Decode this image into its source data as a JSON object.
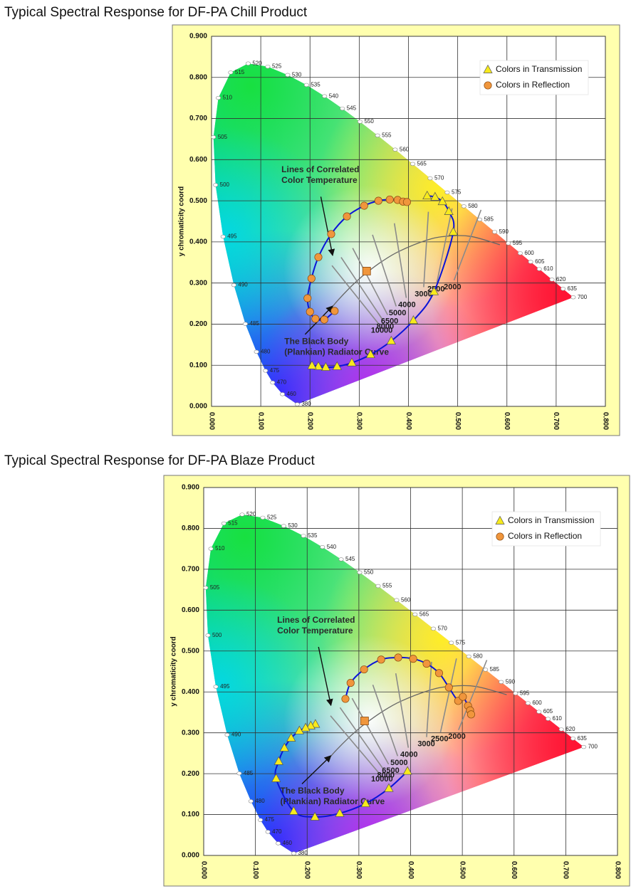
{
  "chart_data": [
    {
      "type": "scatter",
      "title": "Typical Spectral Response for DF-PA Chill Product",
      "ylabel": "y chromaticity coord",
      "xlim": [
        0,
        0.8
      ],
      "ylim": [
        0,
        0.9
      ],
      "xticks": [
        {
          "value": 0,
          "label": "0.000"
        },
        {
          "value": 0.1,
          "label": "0.100"
        },
        {
          "value": 0.2,
          "label": "0.200"
        },
        {
          "value": 0.3,
          "label": "0.300"
        },
        {
          "value": 0.4,
          "label": "0.400"
        },
        {
          "value": 0.5,
          "label": "0.500"
        },
        {
          "value": 0.6,
          "label": "0.600"
        },
        {
          "value": 0.7,
          "label": "0.700"
        },
        {
          "value": 0.8,
          "label": "0.800"
        }
      ],
      "yticks": [
        {
          "value": 0,
          "label": "0.000"
        },
        {
          "value": 0.1,
          "label": "0.100"
        },
        {
          "value": 0.2,
          "label": "0.200"
        },
        {
          "value": 0.3,
          "label": "0.300"
        },
        {
          "value": 0.4,
          "label": "0.400"
        },
        {
          "value": 0.5,
          "label": "0.500"
        },
        {
          "value": 0.6,
          "label": "0.600"
        },
        {
          "value": 0.7,
          "label": "0.700"
        },
        {
          "value": 0.8,
          "label": "0.800"
        },
        {
          "value": 0.9,
          "label": "0.900"
        }
      ],
      "grid": true,
      "legend": "upper right",
      "curve_color": "#0a14d8",
      "series": [
        {
          "name": "Colors in Transmission",
          "marker": "triangle",
          "color": "#f7ea1c",
          "x": [
            0.438,
            0.454,
            0.469,
            0.482,
            0.491,
            0.452,
            0.41,
            0.365,
            0.323,
            0.285,
            0.255,
            0.232,
            0.217,
            0.204
          ],
          "values": [
            0.512,
            0.509,
            0.498,
            0.474,
            0.424,
            0.279,
            0.209,
            0.159,
            0.126,
            0.106,
            0.097,
            0.095,
            0.097,
            0.099
          ]
        },
        {
          "name": "Colors in Reflection",
          "marker": "circle",
          "color": "#f0963c",
          "x": [
            0.25,
            0.229,
            0.211,
            0.2,
            0.195,
            0.203,
            0.217,
            0.243,
            0.275,
            0.31,
            0.339,
            0.362,
            0.378,
            0.389,
            0.397
          ],
          "values": [
            0.232,
            0.211,
            0.213,
            0.23,
            0.263,
            0.311,
            0.363,
            0.419,
            0.462,
            0.488,
            0.5,
            0.503,
            0.502,
            0.498,
            0.497
          ]
        }
      ],
      "white_point": {
        "x": 0.315,
        "y": 0.329,
        "color": "#f0963c"
      },
      "spectral_locus": {
        "labels": [
          380,
          460,
          470,
          475,
          480,
          485,
          490,
          495,
          500,
          505,
          510,
          515,
          520,
          525,
          530,
          535,
          540,
          545,
          550,
          555,
          560,
          565,
          570,
          575,
          580,
          585,
          590,
          595,
          600,
          605,
          610,
          620,
          635,
          700
        ],
        "x": [
          0.1741,
          0.144,
          0.1241,
          0.1096,
          0.0913,
          0.0687,
          0.0454,
          0.0235,
          0.0082,
          0.0039,
          0.0139,
          0.0389,
          0.0743,
          0.1142,
          0.1547,
          0.1929,
          0.2296,
          0.2658,
          0.3016,
          0.3373,
          0.3731,
          0.4087,
          0.4441,
          0.4788,
          0.5125,
          0.5448,
          0.5752,
          0.6029,
          0.627,
          0.6482,
          0.6658,
          0.6915,
          0.714,
          0.7347
        ],
        "y": [
          0.005,
          0.0297,
          0.0578,
          0.0868,
          0.1327,
          0.2007,
          0.295,
          0.4127,
          0.5384,
          0.6548,
          0.7502,
          0.812,
          0.8338,
          0.8262,
          0.8059,
          0.7816,
          0.7543,
          0.7243,
          0.6923,
          0.6589,
          0.6245,
          0.5896,
          0.5547,
          0.5202,
          0.4866,
          0.4544,
          0.4242,
          0.3965,
          0.3725,
          0.3514,
          0.334,
          0.3083,
          0.2859,
          0.2653
        ]
      },
      "planckian_locus": {
        "x": [
          0.2399,
          0.2565,
          0.2807,
          0.2952,
          0.3135,
          0.3451,
          0.3805,
          0.4369,
          0.477,
          0.5267,
          0.5857
        ],
        "y": [
          0.2342,
          0.2577,
          0.2884,
          0.3048,
          0.3236,
          0.3516,
          0.3768,
          0.4041,
          0.4137,
          0.4133,
          0.3931
        ]
      },
      "cct": {
        "labels": [
          10000,
          8000,
          6500,
          5000,
          4000,
          3000,
          2500,
          2000
        ],
        "x": [
          0.2807,
          0.2952,
          0.3135,
          0.3451,
          0.3805,
          0.4369,
          0.477,
          0.5267
        ],
        "y": [
          0.2884,
          0.3048,
          0.3236,
          0.3516,
          0.3768,
          0.4041,
          0.4137,
          0.4133
        ]
      },
      "annotations": [
        {
          "lines": [
            "Lines of Correlated",
            "Color Temperature"
          ]
        },
        {
          "lines": [
            "The Black Body",
            "(Plankian) Radiator Curve"
          ]
        }
      ]
    },
    {
      "type": "scatter",
      "title": "Typical Spectral Response for DF-PA Blaze Product",
      "ylabel": "y chromaticity coord",
      "xlim": [
        0,
        0.8
      ],
      "ylim": [
        0,
        0.9
      ],
      "xticks": [
        {
          "value": 0,
          "label": "0.000"
        },
        {
          "value": 0.1,
          "label": "0.100"
        },
        {
          "value": 0.2,
          "label": "0.200"
        },
        {
          "value": 0.3,
          "label": "0.300"
        },
        {
          "value": 0.4,
          "label": "0.400"
        },
        {
          "value": 0.5,
          "label": "0.500"
        },
        {
          "value": 0.6,
          "label": "0.600"
        },
        {
          "value": 0.7,
          "label": "0.700"
        },
        {
          "value": 0.8,
          "label": "0.800"
        }
      ],
      "yticks": [
        {
          "value": 0,
          "label": "0.000"
        },
        {
          "value": 0.1,
          "label": "0.100"
        },
        {
          "value": 0.2,
          "label": "0.200"
        },
        {
          "value": 0.3,
          "label": "0.300"
        },
        {
          "value": 0.4,
          "label": "0.400"
        },
        {
          "value": 0.5,
          "label": "0.500"
        },
        {
          "value": 0.6,
          "label": "0.600"
        },
        {
          "value": 0.7,
          "label": "0.700"
        },
        {
          "value": 0.8,
          "label": "0.800"
        },
        {
          "value": 0.9,
          "label": "0.900"
        }
      ],
      "grid": true,
      "legend": "upper right",
      "curve_color": "#0a14d8",
      "series": [
        {
          "name": "Colors in Transmission",
          "marker": "triangle",
          "color": "#f7ea1c",
          "x": [
            0.216,
            0.207,
            0.197,
            0.185,
            0.169,
            0.156,
            0.145,
            0.14,
            0.174,
            0.215,
            0.263,
            0.313,
            0.358,
            0.394
          ],
          "values": [
            0.321,
            0.317,
            0.312,
            0.305,
            0.287,
            0.263,
            0.23,
            0.188,
            0.108,
            0.094,
            0.103,
            0.127,
            0.164,
            0.206
          ]
        },
        {
          "name": "Colors in Reflection",
          "marker": "circle",
          "color": "#f0963c",
          "x": [
            0.274,
            0.284,
            0.31,
            0.343,
            0.376,
            0.405,
            0.431,
            0.455,
            0.474,
            0.492,
            0.501,
            0.511,
            0.515,
            0.517
          ],
          "values": [
            0.383,
            0.422,
            0.455,
            0.479,
            0.484,
            0.481,
            0.469,
            0.446,
            0.411,
            0.378,
            0.388,
            0.366,
            0.355,
            0.345
          ]
        }
      ],
      "white_point": {
        "x": 0.311,
        "y": 0.329,
        "color": "#f0963c"
      },
      "spectral_locus": {
        "labels": [
          380,
          460,
          470,
          475,
          480,
          485,
          490,
          495,
          500,
          505,
          510,
          515,
          520,
          525,
          530,
          535,
          540,
          545,
          550,
          555,
          560,
          565,
          570,
          575,
          580,
          585,
          590,
          595,
          600,
          605,
          610,
          620,
          635,
          700
        ],
        "x": [
          0.1741,
          0.144,
          0.1241,
          0.1096,
          0.0913,
          0.0687,
          0.0454,
          0.0235,
          0.0082,
          0.0039,
          0.0139,
          0.0389,
          0.0743,
          0.1142,
          0.1547,
          0.1929,
          0.2296,
          0.2658,
          0.3016,
          0.3373,
          0.3731,
          0.4087,
          0.4441,
          0.4788,
          0.5125,
          0.5448,
          0.5752,
          0.6029,
          0.627,
          0.6482,
          0.6658,
          0.6915,
          0.714,
          0.7347
        ],
        "y": [
          0.005,
          0.0297,
          0.0578,
          0.0868,
          0.1327,
          0.2007,
          0.295,
          0.4127,
          0.5384,
          0.6548,
          0.7502,
          0.812,
          0.8338,
          0.8262,
          0.8059,
          0.7816,
          0.7543,
          0.7243,
          0.6923,
          0.6589,
          0.6245,
          0.5896,
          0.5547,
          0.5202,
          0.4866,
          0.4544,
          0.4242,
          0.3965,
          0.3725,
          0.3514,
          0.334,
          0.3083,
          0.2859,
          0.2653
        ]
      },
      "planckian_locus": {
        "x": [
          0.2399,
          0.2565,
          0.2807,
          0.2952,
          0.3135,
          0.3451,
          0.3805,
          0.4369,
          0.477,
          0.5267,
          0.5857
        ],
        "y": [
          0.2342,
          0.2577,
          0.2884,
          0.3048,
          0.3236,
          0.3516,
          0.3768,
          0.4041,
          0.4137,
          0.4133,
          0.3931
        ]
      },
      "cct": {
        "labels": [
          10000,
          8000,
          6500,
          5000,
          4000,
          3000,
          2500,
          2000
        ],
        "x": [
          0.2807,
          0.2952,
          0.3135,
          0.3451,
          0.3805,
          0.4369,
          0.477,
          0.5267
        ],
        "y": [
          0.2884,
          0.3048,
          0.3236,
          0.3516,
          0.3768,
          0.4041,
          0.4137,
          0.4133
        ]
      },
      "annotations": [
        {
          "lines": [
            "Lines of Correlated",
            "Color Temperature"
          ]
        },
        {
          "lines": [
            "The Black Body",
            "(Plankian) Radiator Curve"
          ]
        }
      ]
    }
  ]
}
